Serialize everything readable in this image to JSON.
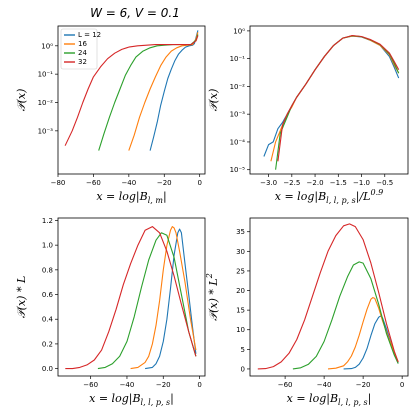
{
  "figure_title": "W = 6, V = 0.1",
  "colors": {
    "L12": "#1f77b4",
    "L16": "#ff7f0e",
    "L24": "#2ca02c",
    "L32": "#d62728"
  },
  "legend": [
    "L = 12",
    "16",
    "24",
    "32"
  ],
  "chart_data": [
    {
      "id": "top-left",
      "type": "line",
      "title": "W = 6, V = 0.1",
      "xlabel": "x = log|B_{l,m}|",
      "ylabel": "P(x)",
      "yscale": "log",
      "xlim": [
        -80,
        3
      ],
      "ylim": [
        3e-05,
        5
      ],
      "xticks": [
        -80,
        -60,
        -40,
        -20,
        0
      ],
      "xticklabels": [
        "−80",
        "−60",
        "−40",
        "−20",
        "0"
      ],
      "yticks": [
        0.001,
        0.01,
        0.1,
        1
      ],
      "yticklabels": [
        "10⁻³",
        "10⁻²",
        "10⁻¹",
        "10⁰"
      ],
      "legend_loc": "upper-left",
      "series": [
        {
          "name": "L = 12",
          "color": "#1f77b4",
          "x": [
            -28,
            -26,
            -24,
            -22,
            -20,
            -18,
            -16,
            -14,
            -12,
            -10,
            -8,
            -6,
            -4,
            -3,
            -2,
            -1
          ],
          "y": [
            0.0002,
            0.0006,
            0.002,
            0.008,
            0.025,
            0.07,
            0.15,
            0.3,
            0.5,
            0.7,
            0.9,
            1.0,
            1.05,
            1.2,
            2.0,
            3.5
          ]
        },
        {
          "name": "16",
          "color": "#ff7f0e",
          "x": [
            -40,
            -37,
            -34,
            -31,
            -28,
            -25,
            -22,
            -19,
            -16,
            -13,
            -10,
            -7,
            -4,
            -2,
            -1
          ],
          "y": [
            0.0002,
            0.0007,
            0.003,
            0.01,
            0.03,
            0.08,
            0.2,
            0.4,
            0.65,
            0.85,
            1.0,
            1.05,
            1.1,
            1.8,
            3.0
          ]
        },
        {
          "name": "24",
          "color": "#2ca02c",
          "x": [
            -57,
            -54,
            -51,
            -48,
            -45,
            -42,
            -39,
            -36,
            -32,
            -28,
            -24,
            -20,
            -15,
            -10,
            -5,
            -2,
            -1
          ],
          "y": [
            0.0002,
            0.0008,
            0.003,
            0.01,
            0.03,
            0.09,
            0.2,
            0.4,
            0.65,
            0.85,
            1.0,
            1.05,
            1.1,
            1.1,
            1.1,
            1.6,
            2.5
          ]
        },
        {
          "name": "32",
          "color": "#d62728",
          "x": [
            -76,
            -72,
            -69,
            -66,
            -63,
            -60,
            -56,
            -52,
            -48,
            -44,
            -40,
            -35,
            -30,
            -25,
            -20,
            -15,
            -10,
            -5,
            -2,
            -1
          ],
          "y": [
            0.0003,
            0.001,
            0.003,
            0.01,
            0.03,
            0.08,
            0.18,
            0.35,
            0.55,
            0.75,
            0.9,
            1.0,
            1.05,
            1.1,
            1.1,
            1.1,
            1.1,
            1.1,
            1.5,
            2.3
          ]
        }
      ]
    },
    {
      "id": "top-right",
      "type": "line",
      "title": "",
      "xlabel": "x = log|B_{l,l,p,s}|/L^{0.9}",
      "ylabel": "P(x)",
      "yscale": "log",
      "xlim": [
        -3.4,
        0.0
      ],
      "ylim": [
        7e-06,
        1.5
      ],
      "xticks": [
        -3.0,
        -2.5,
        -2.0,
        -1.5,
        -1.0,
        -0.5
      ],
      "xticklabels": [
        "−3.0",
        "−2.5",
        "−2.0",
        "−1.5",
        "−1.0",
        "−0.5"
      ],
      "yticks": [
        1e-05,
        0.0001,
        0.001,
        0.01,
        0.1,
        1
      ],
      "yticklabels": [
        "10⁻⁵",
        "10⁻⁴",
        "10⁻³",
        "10⁻²",
        "10⁻¹",
        "10⁰"
      ],
      "series": [
        {
          "name": "12",
          "color": "#1f77b4",
          "x": [
            -3.1,
            -3.0,
            -2.9,
            -2.8,
            -2.7,
            -2.6,
            -2.5,
            -2.4,
            -2.2,
            -2.0,
            -1.8,
            -1.6,
            -1.4,
            -1.2,
            -1.0,
            -0.8,
            -0.6,
            -0.4,
            -0.3,
            -0.2
          ],
          "y": [
            3e-05,
            8e-05,
            0.0001,
            0.0003,
            0.0005,
            0.001,
            0.002,
            0.004,
            0.012,
            0.04,
            0.12,
            0.3,
            0.55,
            0.65,
            0.6,
            0.45,
            0.3,
            0.12,
            0.05,
            0.02
          ]
        },
        {
          "name": "16",
          "color": "#ff7f0e",
          "x": [
            -2.95,
            -2.85,
            -2.7,
            -2.6,
            -2.5,
            -2.4,
            -2.2,
            -2.0,
            -1.8,
            -1.6,
            -1.4,
            -1.2,
            -1.0,
            -0.8,
            -0.6,
            -0.4,
            -0.3,
            -0.2
          ],
          "y": [
            2e-05,
            0.0001,
            0.0004,
            0.001,
            0.0018,
            0.004,
            0.012,
            0.04,
            0.12,
            0.3,
            0.55,
            0.65,
            0.62,
            0.45,
            0.3,
            0.14,
            0.06,
            0.03
          ]
        },
        {
          "name": "24",
          "color": "#2ca02c",
          "x": [
            -2.85,
            -2.75,
            -2.6,
            -2.5,
            -2.4,
            -2.2,
            -2.0,
            -1.8,
            -1.6,
            -1.4,
            -1.2,
            -1.0,
            -0.8,
            -0.6,
            -0.4,
            -0.3,
            -0.2
          ],
          "y": [
            1e-05,
            0.0002,
            0.0008,
            0.002,
            0.004,
            0.012,
            0.04,
            0.12,
            0.3,
            0.55,
            0.67,
            0.62,
            0.47,
            0.32,
            0.15,
            0.07,
            0.03
          ]
        },
        {
          "name": "32",
          "color": "#d62728",
          "x": [
            -2.8,
            -2.7,
            -2.6,
            -2.5,
            -2.4,
            -2.2,
            -2.0,
            -1.8,
            -1.6,
            -1.4,
            -1.2,
            -1.0,
            -0.8,
            -0.6,
            -0.4,
            -0.3,
            -0.2
          ],
          "y": [
            2e-05,
            0.0004,
            0.001,
            0.002,
            0.004,
            0.012,
            0.04,
            0.12,
            0.3,
            0.55,
            0.68,
            0.63,
            0.48,
            0.33,
            0.16,
            0.08,
            0.04
          ]
        }
      ]
    },
    {
      "id": "bottom-left",
      "type": "line",
      "title": "",
      "xlabel": "x = log|B_{l,l,p,s}|",
      "ylabel": "P(x) * L",
      "yscale": "linear",
      "xlim": [
        -78,
        3
      ],
      "ylim": [
        -0.06,
        1.22
      ],
      "xticks": [
        -60,
        -40,
        -20,
        0
      ],
      "xticklabels": [
        "−60",
        "−40",
        "−20",
        "0"
      ],
      "yticks": [
        0.0,
        0.2,
        0.4,
        0.6,
        0.8,
        1.0,
        1.2
      ],
      "yticklabels": [
        "0.0",
        "0.2",
        "0.4",
        "0.6",
        "0.8",
        "1.0",
        "1.2"
      ],
      "series": [
        {
          "name": "12",
          "color": "#1f77b4",
          "x": [
            -30,
            -26,
            -24,
            -22,
            -20,
            -18,
            -16,
            -14,
            -12,
            -11,
            -10,
            -8,
            -6,
            -4,
            -2
          ],
          "y": [
            0,
            0.01,
            0.04,
            0.1,
            0.22,
            0.4,
            0.65,
            0.92,
            1.1,
            1.13,
            1.1,
            0.85,
            0.6,
            0.35,
            0.12
          ]
        },
        {
          "name": "16",
          "color": "#ff7f0e",
          "x": [
            -38,
            -34,
            -30,
            -28,
            -26,
            -24,
            -22,
            -20,
            -18,
            -16,
            -15,
            -14,
            -13,
            -11,
            -8,
            -5,
            -2
          ],
          "y": [
            0,
            0.01,
            0.05,
            0.1,
            0.2,
            0.35,
            0.55,
            0.8,
            1.0,
            1.12,
            1.15,
            1.14,
            1.1,
            0.95,
            0.7,
            0.4,
            0.15
          ]
        },
        {
          "name": "24",
          "color": "#2ca02c",
          "x": [
            -56,
            -52,
            -48,
            -44,
            -40,
            -36,
            -32,
            -28,
            -24,
            -21,
            -18,
            -14,
            -10,
            -6,
            -2
          ],
          "y": [
            0,
            0.01,
            0.04,
            0.1,
            0.22,
            0.42,
            0.66,
            0.88,
            1.04,
            1.1,
            1.08,
            0.9,
            0.6,
            0.3,
            0.1
          ]
        },
        {
          "name": "32",
          "color": "#d62728",
          "x": [
            -74,
            -70,
            -66,
            -62,
            -58,
            -54,
            -50,
            -46,
            -42,
            -38,
            -34,
            -30,
            -26,
            -22,
            -18,
            -14,
            -10,
            -6,
            -2
          ],
          "y": [
            0,
            0.0,
            0.01,
            0.03,
            0.07,
            0.15,
            0.3,
            0.48,
            0.68,
            0.85,
            1.0,
            1.12,
            1.15,
            1.1,
            0.95,
            0.75,
            0.52,
            0.3,
            0.1
          ]
        }
      ]
    },
    {
      "id": "bottom-right",
      "type": "line",
      "title": "",
      "xlabel": "x = log|B_{l,l,p,s}|",
      "ylabel": "P(x) * L^2",
      "yscale": "linear",
      "xlim": [
        -78,
        3
      ],
      "ylim": [
        -1.8,
        38.5
      ],
      "xticks": [
        -60,
        -40,
        -20,
        0
      ],
      "xticklabels": [
        "−60",
        "−40",
        "−20",
        "0"
      ],
      "yticks": [
        0,
        5,
        10,
        15,
        20,
        25,
        30,
        35
      ],
      "yticklabels": [
        "0",
        "5",
        "10",
        "15",
        "20",
        "25",
        "30",
        "35"
      ],
      "series": [
        {
          "name": "12",
          "color": "#1f77b4",
          "x": [
            -30,
            -26,
            -24,
            -22,
            -20,
            -18,
            -16,
            -14,
            -12,
            -11,
            -10,
            -8,
            -6,
            -4,
            -2
          ],
          "y": [
            0,
            0.1,
            0.4,
            1.2,
            2.8,
            5.2,
            8.5,
            11.5,
            13.2,
            13.5,
            13.0,
            10.2,
            7.0,
            4.0,
            1.4
          ]
        },
        {
          "name": "16",
          "color": "#ff7f0e",
          "x": [
            -38,
            -34,
            -30,
            -28,
            -26,
            -24,
            -22,
            -20,
            -18,
            -16,
            -15,
            -14,
            -12,
            -10,
            -7,
            -4,
            -2
          ],
          "y": [
            0,
            0.2,
            0.8,
            1.8,
            3.3,
            5.6,
            8.6,
            12.0,
            15.2,
            17.8,
            18.2,
            18.0,
            15.5,
            12.2,
            8.0,
            4.2,
            1.8
          ]
        },
        {
          "name": "24",
          "color": "#2ca02c",
          "x": [
            -56,
            -52,
            -48,
            -44,
            -40,
            -36,
            -32,
            -28,
            -25,
            -22,
            -20,
            -16,
            -12,
            -8,
            -4,
            -2
          ],
          "y": [
            0,
            0.3,
            1.2,
            3.2,
            7.0,
            12.5,
            18.5,
            23.5,
            26.5,
            27.3,
            27.0,
            23.0,
            16.5,
            9.0,
            3.5,
            1.4
          ]
        },
        {
          "name": "32",
          "color": "#d62728",
          "x": [
            -74,
            -70,
            -66,
            -62,
            -58,
            -54,
            -50,
            -46,
            -42,
            -38,
            -34,
            -30,
            -27,
            -24,
            -20,
            -16,
            -12,
            -8,
            -4,
            -2
          ],
          "y": [
            0,
            0.1,
            0.6,
            1.8,
            4.0,
            7.5,
            12.5,
            18.5,
            24.5,
            30.0,
            34.0,
            36.5,
            37.0,
            36.3,
            33.0,
            27.0,
            19.5,
            11.5,
            4.5,
            1.8
          ]
        }
      ]
    }
  ]
}
